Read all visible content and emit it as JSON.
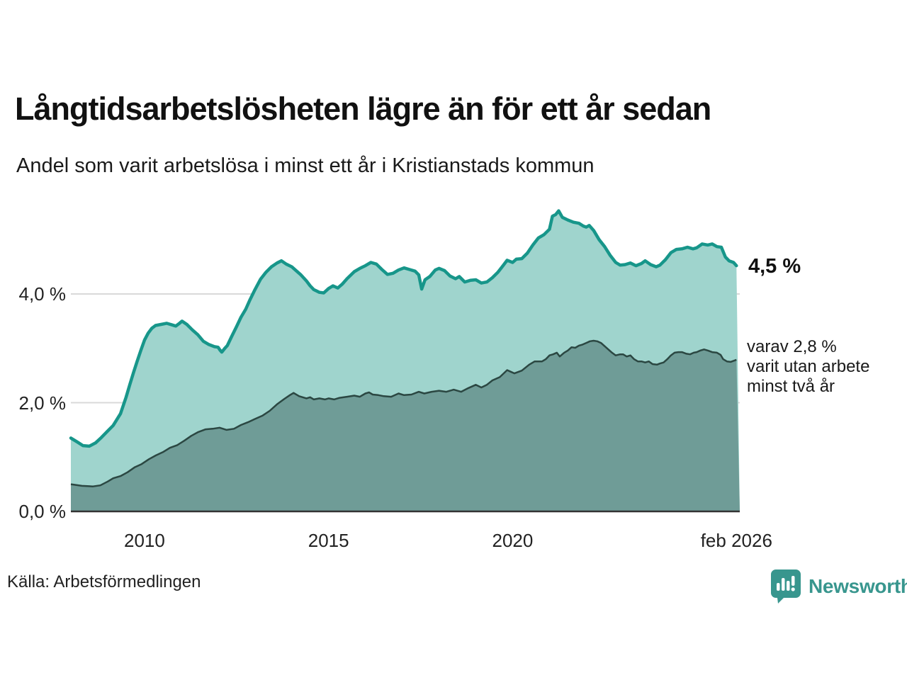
{
  "header": {
    "title": "Långtidsarbetslösheten lägre än för ett år sedan",
    "subtitle": "Andel som varit arbetslösa i minst ett år i Kristianstads kommun"
  },
  "annotations": {
    "end_value_label": "4,5 %",
    "secondary_label": "varav 2,8 %\nvarit utan arbete\nminst två år"
  },
  "footer": {
    "source": "Källa: Arbetsförmedlingen",
    "logo_text": "Newsworthy"
  },
  "colors": {
    "series1_line": "#17968a",
    "series1_fill": "#9fd4cd",
    "series2_line": "#2b4742",
    "series2_fill": "#6f9c97",
    "gridline": "#d9d9d9",
    "baseline": "#333333",
    "logo_teal": "#38968e"
  },
  "chart_data": {
    "type": "area",
    "title": "Långtidsarbetslösheten lägre än för ett år sedan",
    "subtitle": "Andel som varit arbetslösa i minst ett år i Kristianstads kommun",
    "xlabel": "",
    "ylabel": "",
    "x_range": [
      2008,
      2026.17
    ],
    "ylim": [
      0,
      5.6
    ],
    "grid": "horizontal",
    "legend_position": "none",
    "y_ticks": [
      {
        "value": 0,
        "label": "0,0 %"
      },
      {
        "value": 2,
        "label": "2,0 %"
      },
      {
        "value": 4,
        "label": "4,0 %"
      }
    ],
    "x_ticks": [
      {
        "year": 2010,
        "label": "2010"
      },
      {
        "year": 2015,
        "label": "2015"
      },
      {
        "year": 2020,
        "label": "2020"
      },
      {
        "year": 2026.08,
        "label": "feb 2026"
      }
    ],
    "series": [
      {
        "name": "arbetslösa minst ett år",
        "end_value": 4.5,
        "points": [
          [
            2008.0,
            1.35
          ],
          [
            2008.17,
            1.28
          ],
          [
            2008.33,
            1.21
          ],
          [
            2008.5,
            1.2
          ],
          [
            2008.67,
            1.26
          ],
          [
            2008.83,
            1.36
          ],
          [
            2009.0,
            1.48
          ],
          [
            2009.15,
            1.58
          ],
          [
            2009.35,
            1.8
          ],
          [
            2009.5,
            2.1
          ],
          [
            2009.6,
            2.33
          ],
          [
            2009.7,
            2.55
          ],
          [
            2009.8,
            2.76
          ],
          [
            2009.9,
            2.96
          ],
          [
            2010.0,
            3.15
          ],
          [
            2010.1,
            3.28
          ],
          [
            2010.2,
            3.37
          ],
          [
            2010.3,
            3.42
          ],
          [
            2010.45,
            3.44
          ],
          [
            2010.6,
            3.46
          ],
          [
            2010.75,
            3.43
          ],
          [
            2010.85,
            3.41
          ],
          [
            2010.95,
            3.46
          ],
          [
            2011.02,
            3.5
          ],
          [
            2011.15,
            3.44
          ],
          [
            2011.3,
            3.34
          ],
          [
            2011.45,
            3.25
          ],
          [
            2011.6,
            3.13
          ],
          [
            2011.75,
            3.07
          ],
          [
            2011.9,
            3.03
          ],
          [
            2012.0,
            3.02
          ],
          [
            2012.05,
            2.97
          ],
          [
            2012.1,
            2.93
          ],
          [
            2012.18,
            3.0
          ],
          [
            2012.25,
            3.05
          ],
          [
            2012.37,
            3.22
          ],
          [
            2012.5,
            3.4
          ],
          [
            2012.62,
            3.57
          ],
          [
            2012.75,
            3.72
          ],
          [
            2012.87,
            3.9
          ],
          [
            2013.0,
            4.08
          ],
          [
            2013.15,
            4.27
          ],
          [
            2013.3,
            4.4
          ],
          [
            2013.45,
            4.5
          ],
          [
            2013.6,
            4.57
          ],
          [
            2013.72,
            4.61
          ],
          [
            2013.85,
            4.55
          ],
          [
            2014.0,
            4.5
          ],
          [
            2014.1,
            4.44
          ],
          [
            2014.25,
            4.35
          ],
          [
            2014.4,
            4.24
          ],
          [
            2014.5,
            4.15
          ],
          [
            2014.6,
            4.08
          ],
          [
            2014.75,
            4.03
          ],
          [
            2014.87,
            4.02
          ],
          [
            2015.0,
            4.1
          ],
          [
            2015.12,
            4.15
          ],
          [
            2015.25,
            4.11
          ],
          [
            2015.37,
            4.18
          ],
          [
            2015.5,
            4.28
          ],
          [
            2015.7,
            4.41
          ],
          [
            2015.85,
            4.47
          ],
          [
            2016.0,
            4.52
          ],
          [
            2016.15,
            4.58
          ],
          [
            2016.3,
            4.55
          ],
          [
            2016.45,
            4.45
          ],
          [
            2016.6,
            4.36
          ],
          [
            2016.75,
            4.38
          ],
          [
            2016.9,
            4.44
          ],
          [
            2017.05,
            4.48
          ],
          [
            2017.2,
            4.45
          ],
          [
            2017.35,
            4.42
          ],
          [
            2017.45,
            4.35
          ],
          [
            2017.53,
            4.09
          ],
          [
            2017.62,
            4.26
          ],
          [
            2017.75,
            4.32
          ],
          [
            2017.9,
            4.44
          ],
          [
            2018.0,
            4.47
          ],
          [
            2018.15,
            4.43
          ],
          [
            2018.3,
            4.33
          ],
          [
            2018.45,
            4.28
          ],
          [
            2018.55,
            4.32
          ],
          [
            2018.7,
            4.22
          ],
          [
            2018.85,
            4.25
          ],
          [
            2019.0,
            4.26
          ],
          [
            2019.15,
            4.2
          ],
          [
            2019.3,
            4.22
          ],
          [
            2019.45,
            4.3
          ],
          [
            2019.6,
            4.4
          ],
          [
            2019.75,
            4.53
          ],
          [
            2019.85,
            4.62
          ],
          [
            2020.0,
            4.58
          ],
          [
            2020.1,
            4.64
          ],
          [
            2020.25,
            4.65
          ],
          [
            2020.4,
            4.75
          ],
          [
            2020.55,
            4.9
          ],
          [
            2020.7,
            5.03
          ],
          [
            2020.85,
            5.09
          ],
          [
            2021.0,
            5.19
          ],
          [
            2021.08,
            5.43
          ],
          [
            2021.17,
            5.46
          ],
          [
            2021.25,
            5.53
          ],
          [
            2021.35,
            5.41
          ],
          [
            2021.5,
            5.36
          ],
          [
            2021.65,
            5.32
          ],
          [
            2021.8,
            5.3
          ],
          [
            2021.92,
            5.25
          ],
          [
            2022.0,
            5.23
          ],
          [
            2022.08,
            5.26
          ],
          [
            2022.2,
            5.17
          ],
          [
            2022.35,
            5.0
          ],
          [
            2022.5,
            4.87
          ],
          [
            2022.65,
            4.71
          ],
          [
            2022.8,
            4.58
          ],
          [
            2022.92,
            4.53
          ],
          [
            2023.05,
            4.54
          ],
          [
            2023.2,
            4.57
          ],
          [
            2023.35,
            4.52
          ],
          [
            2023.5,
            4.56
          ],
          [
            2023.6,
            4.61
          ],
          [
            2023.75,
            4.54
          ],
          [
            2023.9,
            4.5
          ],
          [
            2024.0,
            4.53
          ],
          [
            2024.15,
            4.63
          ],
          [
            2024.3,
            4.76
          ],
          [
            2024.45,
            4.82
          ],
          [
            2024.6,
            4.83
          ],
          [
            2024.75,
            4.86
          ],
          [
            2024.9,
            4.83
          ],
          [
            2025.0,
            4.85
          ],
          [
            2025.15,
            4.92
          ],
          [
            2025.3,
            4.9
          ],
          [
            2025.42,
            4.92
          ],
          [
            2025.55,
            4.87
          ],
          [
            2025.67,
            4.86
          ],
          [
            2025.78,
            4.68
          ],
          [
            2025.88,
            4.61
          ],
          [
            2026.0,
            4.58
          ],
          [
            2026.08,
            4.52
          ]
        ]
      },
      {
        "name": "varav utan arbete minst två år",
        "end_value": 2.8,
        "points": [
          [
            2008.0,
            0.5
          ],
          [
            2008.3,
            0.47
          ],
          [
            2008.6,
            0.46
          ],
          [
            2008.8,
            0.48
          ],
          [
            2009.0,
            0.55
          ],
          [
            2009.15,
            0.61
          ],
          [
            2009.35,
            0.65
          ],
          [
            2009.54,
            0.72
          ],
          [
            2009.73,
            0.81
          ],
          [
            2009.92,
            0.87
          ],
          [
            2010.12,
            0.96
          ],
          [
            2010.31,
            1.03
          ],
          [
            2010.5,
            1.09
          ],
          [
            2010.69,
            1.17
          ],
          [
            2010.89,
            1.22
          ],
          [
            2011.08,
            1.3
          ],
          [
            2011.27,
            1.39
          ],
          [
            2011.46,
            1.46
          ],
          [
            2011.66,
            1.51
          ],
          [
            2011.85,
            1.52
          ],
          [
            2012.04,
            1.54
          ],
          [
            2012.23,
            1.5
          ],
          [
            2012.43,
            1.52
          ],
          [
            2012.62,
            1.59
          ],
          [
            2012.81,
            1.64
          ],
          [
            2013.0,
            1.7
          ],
          [
            2013.2,
            1.76
          ],
          [
            2013.4,
            1.85
          ],
          [
            2013.6,
            1.97
          ],
          [
            2013.8,
            2.07
          ],
          [
            2013.95,
            2.14
          ],
          [
            2014.05,
            2.18
          ],
          [
            2014.2,
            2.12
          ],
          [
            2014.4,
            2.08
          ],
          [
            2014.5,
            2.1
          ],
          [
            2014.6,
            2.06
          ],
          [
            2014.75,
            2.08
          ],
          [
            2014.9,
            2.06
          ],
          [
            2015.0,
            2.08
          ],
          [
            2015.15,
            2.06
          ],
          [
            2015.3,
            2.09
          ],
          [
            2015.5,
            2.11
          ],
          [
            2015.7,
            2.13
          ],
          [
            2015.85,
            2.11
          ],
          [
            2016.0,
            2.17
          ],
          [
            2016.1,
            2.19
          ],
          [
            2016.2,
            2.15
          ],
          [
            2016.35,
            2.14
          ],
          [
            2016.5,
            2.12
          ],
          [
            2016.7,
            2.11
          ],
          [
            2016.9,
            2.17
          ],
          [
            2017.05,
            2.14
          ],
          [
            2017.25,
            2.15
          ],
          [
            2017.45,
            2.2
          ],
          [
            2017.6,
            2.17
          ],
          [
            2017.8,
            2.2
          ],
          [
            2018.0,
            2.22
          ],
          [
            2018.2,
            2.2
          ],
          [
            2018.4,
            2.24
          ],
          [
            2018.6,
            2.2
          ],
          [
            2018.8,
            2.27
          ],
          [
            2019.0,
            2.33
          ],
          [
            2019.15,
            2.28
          ],
          [
            2019.3,
            2.33
          ],
          [
            2019.45,
            2.41
          ],
          [
            2019.65,
            2.47
          ],
          [
            2019.85,
            2.6
          ],
          [
            2019.95,
            2.57
          ],
          [
            2020.05,
            2.54
          ],
          [
            2020.25,
            2.59
          ],
          [
            2020.45,
            2.7
          ],
          [
            2020.6,
            2.76
          ],
          [
            2020.8,
            2.76
          ],
          [
            2020.9,
            2.8
          ],
          [
            2021.0,
            2.87
          ],
          [
            2021.1,
            2.89
          ],
          [
            2021.2,
            2.92
          ],
          [
            2021.28,
            2.85
          ],
          [
            2021.4,
            2.92
          ],
          [
            2021.5,
            2.96
          ],
          [
            2021.6,
            3.02
          ],
          [
            2021.7,
            3.01
          ],
          [
            2021.8,
            3.05
          ],
          [
            2021.9,
            3.07
          ],
          [
            2022.0,
            3.1
          ],
          [
            2022.1,
            3.13
          ],
          [
            2022.2,
            3.14
          ],
          [
            2022.3,
            3.13
          ],
          [
            2022.4,
            3.1
          ],
          [
            2022.5,
            3.04
          ],
          [
            2022.6,
            2.98
          ],
          [
            2022.7,
            2.92
          ],
          [
            2022.8,
            2.87
          ],
          [
            2022.92,
            2.89
          ],
          [
            2023.0,
            2.89
          ],
          [
            2023.1,
            2.85
          ],
          [
            2023.2,
            2.87
          ],
          [
            2023.3,
            2.8
          ],
          [
            2023.4,
            2.76
          ],
          [
            2023.5,
            2.76
          ],
          [
            2023.6,
            2.74
          ],
          [
            2023.7,
            2.76
          ],
          [
            2023.8,
            2.71
          ],
          [
            2023.92,
            2.7
          ],
          [
            2024.0,
            2.72
          ],
          [
            2024.1,
            2.74
          ],
          [
            2024.2,
            2.8
          ],
          [
            2024.3,
            2.87
          ],
          [
            2024.4,
            2.92
          ],
          [
            2024.5,
            2.93
          ],
          [
            2024.6,
            2.93
          ],
          [
            2024.72,
            2.9
          ],
          [
            2024.82,
            2.89
          ],
          [
            2024.92,
            2.92
          ],
          [
            2025.0,
            2.93
          ],
          [
            2025.1,
            2.96
          ],
          [
            2025.2,
            2.98
          ],
          [
            2025.3,
            2.96
          ],
          [
            2025.42,
            2.93
          ],
          [
            2025.55,
            2.92
          ],
          [
            2025.65,
            2.88
          ],
          [
            2025.72,
            2.8
          ],
          [
            2025.82,
            2.76
          ],
          [
            2025.92,
            2.75
          ],
          [
            2026.0,
            2.77
          ],
          [
            2026.08,
            2.79
          ]
        ]
      }
    ]
  }
}
